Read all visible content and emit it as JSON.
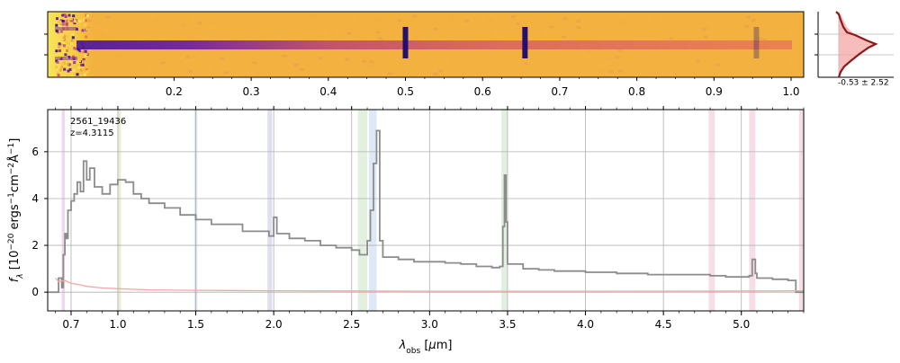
{
  "chart_data": [
    {
      "type": "heatmap",
      "name": "2D spectrum",
      "colormap": "plasma",
      "top_axis_ticks": [
        0.2,
        0.3,
        0.4,
        0.5,
        0.6,
        0.7,
        0.8,
        0.9,
        1.0
      ],
      "top_axis_tick_labels": [
        "0.2",
        "0.3",
        "0.4",
        "0.5",
        "0.6",
        "0.7",
        "0.8",
        "0.9",
        "1.0"
      ],
      "emission_lines_x": [
        0.5,
        0.655,
        0.955
      ],
      "continuum_row": "center"
    },
    {
      "type": "line",
      "name": "Profile",
      "annotation": "-0.53 ± 2.52",
      "fill_color": "#f4a6a6",
      "line_color": "#8b1a1a"
    },
    {
      "type": "line",
      "name": "1D spectrum",
      "object_id": "2561_19436",
      "redshift_label": "z=4.3115",
      "xlabel": "λobs [μm]",
      "ylabel": "fλ [10−20 ergs−1cm−2Å−1]",
      "xlim": [
        0.55,
        5.4
      ],
      "ylim": [
        -0.8,
        7.8
      ],
      "x_ticks": [
        0.7,
        1.0,
        1.5,
        2.0,
        2.5,
        3.0,
        3.5,
        4.0,
        4.5,
        5.0
      ],
      "x_tick_labels": [
        "0.7",
        "1.0",
        "1.5",
        "2.0",
        "2.5",
        "3.0",
        "3.5",
        "4.0",
        "4.5",
        "5.0"
      ],
      "y_ticks": [
        0,
        2,
        4,
        6
      ],
      "y_tick_labels": [
        "0",
        "2",
        "4",
        "6"
      ],
      "grid": true,
      "series": [
        {
          "style": "step",
          "color": "#8c8c8c",
          "points": [
            [
              0.55,
              0.0
            ],
            [
              0.6,
              0.0
            ],
            [
              0.62,
              0.6
            ],
            [
              0.64,
              0.2
            ],
            [
              0.65,
              1.6
            ],
            [
              0.66,
              2.5
            ],
            [
              0.67,
              2.3
            ],
            [
              0.68,
              3.5
            ],
            [
              0.7,
              3.9
            ],
            [
              0.72,
              4.2
            ],
            [
              0.74,
              4.7
            ],
            [
              0.76,
              4.3
            ],
            [
              0.78,
              5.6
            ],
            [
              0.8,
              4.8
            ],
            [
              0.82,
              5.3
            ],
            [
              0.85,
              4.5
            ],
            [
              0.9,
              4.2
            ],
            [
              0.95,
              4.6
            ],
            [
              1.0,
              4.8
            ],
            [
              1.05,
              4.7
            ],
            [
              1.1,
              4.2
            ],
            [
              1.15,
              4.0
            ],
            [
              1.2,
              3.8
            ],
            [
              1.3,
              3.6
            ],
            [
              1.4,
              3.3
            ],
            [
              1.5,
              3.1
            ],
            [
              1.6,
              2.9
            ],
            [
              1.7,
              2.9
            ],
            [
              1.8,
              2.6
            ],
            [
              1.9,
              2.6
            ],
            [
              1.97,
              2.4
            ],
            [
              2.0,
              3.2
            ],
            [
              2.02,
              2.5
            ],
            [
              2.1,
              2.3
            ],
            [
              2.2,
              2.2
            ],
            [
              2.3,
              2.0
            ],
            [
              2.4,
              1.9
            ],
            [
              2.5,
              1.8
            ],
            [
              2.55,
              1.6
            ],
            [
              2.6,
              2.2
            ],
            [
              2.62,
              3.5
            ],
            [
              2.64,
              5.5
            ],
            [
              2.66,
              6.9
            ],
            [
              2.68,
              2.2
            ],
            [
              2.7,
              1.5
            ],
            [
              2.8,
              1.4
            ],
            [
              2.9,
              1.3
            ],
            [
              3.0,
              1.3
            ],
            [
              3.1,
              1.25
            ],
            [
              3.2,
              1.2
            ],
            [
              3.3,
              1.1
            ],
            [
              3.4,
              1.05
            ],
            [
              3.45,
              1.1
            ],
            [
              3.47,
              2.8
            ],
            [
              3.48,
              5.0
            ],
            [
              3.49,
              3.0
            ],
            [
              3.5,
              1.2
            ],
            [
              3.6,
              1.0
            ],
            [
              3.7,
              0.95
            ],
            [
              3.8,
              0.9
            ],
            [
              4.0,
              0.85
            ],
            [
              4.2,
              0.8
            ],
            [
              4.4,
              0.75
            ],
            [
              4.6,
              0.75
            ],
            [
              4.8,
              0.7
            ],
            [
              4.9,
              0.65
            ],
            [
              5.0,
              0.65
            ],
            [
              5.05,
              0.7
            ],
            [
              5.07,
              1.4
            ],
            [
              5.09,
              0.8
            ],
            [
              5.1,
              0.6
            ],
            [
              5.2,
              0.55
            ],
            [
              5.3,
              0.5
            ],
            [
              5.35,
              0.0
            ],
            [
              5.4,
              0.0
            ]
          ]
        },
        {
          "style": "line",
          "color": "#f4a6a6",
          "points": [
            [
              0.6,
              0.6
            ],
            [
              0.62,
              0.45
            ],
            [
              0.66,
              0.5
            ],
            [
              0.7,
              0.38
            ],
            [
              0.75,
              0.32
            ],
            [
              0.8,
              0.25
            ],
            [
              0.9,
              0.18
            ],
            [
              1.0,
              0.15
            ],
            [
              1.2,
              0.1
            ],
            [
              1.5,
              0.08
            ],
            [
              2.0,
              0.06
            ],
            [
              3.0,
              0.04
            ],
            [
              4.0,
              0.04
            ],
            [
              5.0,
              0.05
            ],
            [
              5.4,
              0.06
            ]
          ]
        }
      ],
      "bands": [
        {
          "x0": 0.64,
          "x1": 0.66,
          "color": "#e8cbe8"
        },
        {
          "x0": 1.0,
          "x1": 1.02,
          "color": "#dde8c8"
        },
        {
          "x0": 1.49,
          "x1": 1.51,
          "color": "#d0dcee"
        },
        {
          "x0": 1.96,
          "x1": 1.99,
          "color": "#d4d4ee"
        },
        {
          "x0": 2.54,
          "x1": 2.6,
          "color": "#d8ecd4"
        },
        {
          "x0": 2.61,
          "x1": 2.66,
          "color": "#d4e0f4"
        },
        {
          "x0": 3.46,
          "x1": 3.5,
          "color": "#d8ecd4"
        },
        {
          "x0": 4.79,
          "x1": 4.83,
          "color": "#f2d4dc"
        },
        {
          "x0": 5.05,
          "x1": 5.09,
          "color": "#f2d4dc"
        },
        {
          "x0": 5.37,
          "x1": 5.4,
          "color": "#f2d4dc"
        }
      ]
    }
  ]
}
